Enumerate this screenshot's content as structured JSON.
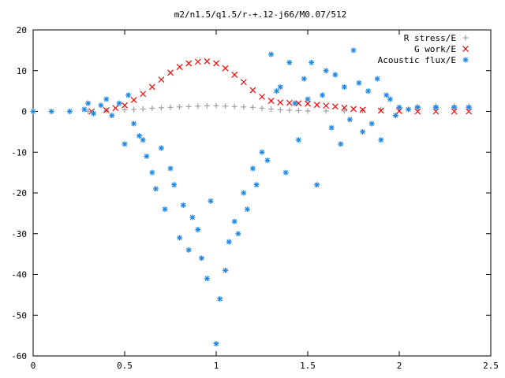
{
  "chart_data": {
    "type": "scatter",
    "title": "m2/n1.5/q1.5/r-+.12-j66/M0.07/512",
    "xlabel": "",
    "ylabel": "",
    "xlim": [
      0,
      2.5
    ],
    "ylim": [
      -60,
      20
    ],
    "x_ticks": [
      "0",
      "0.5",
      "1",
      "1.5",
      "2",
      "2.5"
    ],
    "y_ticks": [
      "20",
      "10",
      "0",
      "-10",
      "-20",
      "-30",
      "-40",
      "-50",
      "-60"
    ],
    "grid": false,
    "legend_position": "top-right",
    "series": [
      {
        "name": "R stress/E",
        "marker": "plus",
        "color": "#a0a0a0",
        "x": [
          0.3,
          0.4,
          0.5,
          0.55,
          0.6,
          0.65,
          0.7,
          0.75,
          0.8,
          0.85,
          0.9,
          0.95,
          1.0,
          1.05,
          1.1,
          1.15,
          1.2,
          1.25,
          1.3,
          1.35,
          1.4,
          1.45,
          1.5,
          1.6,
          1.7,
          1.8,
          1.9,
          2.0,
          2.1,
          2.2,
          2.3,
          2.38
        ],
        "y": [
          0.0,
          0.2,
          0.4,
          0.5,
          0.6,
          0.8,
          0.9,
          1.0,
          1.1,
          1.2,
          1.3,
          1.4,
          1.4,
          1.3,
          1.2,
          1.1,
          1.0,
          0.8,
          0.6,
          0.4,
          0.3,
          0.2,
          0.1,
          0.1,
          0.1,
          0.2,
          0.5,
          1.0,
          1.2,
          1.3,
          1.3,
          1.3
        ]
      },
      {
        "name": "G work/E",
        "marker": "cross",
        "color": "#ff0000",
        "x": [
          0.32,
          0.4,
          0.45,
          0.5,
          0.55,
          0.6,
          0.65,
          0.7,
          0.75,
          0.8,
          0.85,
          0.9,
          0.95,
          1.0,
          1.05,
          1.1,
          1.15,
          1.2,
          1.25,
          1.3,
          1.35,
          1.4,
          1.45,
          1.5,
          1.55,
          1.6,
          1.65,
          1.7,
          1.75,
          1.8,
          1.9,
          2.0,
          2.1,
          2.2,
          2.3,
          2.38
        ],
        "y": [
          0.0,
          0.3,
          0.8,
          1.5,
          2.8,
          4.3,
          6.0,
          7.8,
          9.5,
          10.9,
          11.8,
          12.2,
          12.3,
          11.8,
          10.6,
          9.0,
          7.2,
          5.2,
          3.6,
          2.6,
          2.2,
          2.1,
          2.0,
          1.9,
          1.6,
          1.4,
          1.2,
          0.9,
          0.6,
          0.4,
          0.2,
          0.1,
          0.0,
          0.0,
          0.0,
          0.0
        ]
      },
      {
        "name": "Acoustic flux/E",
        "marker": "star",
        "color": "#1e88e5",
        "x": [
          0.0,
          0.1,
          0.2,
          0.28,
          0.3,
          0.33,
          0.37,
          0.4,
          0.43,
          0.47,
          0.5,
          0.52,
          0.55,
          0.58,
          0.6,
          0.62,
          0.65,
          0.67,
          0.7,
          0.72,
          0.75,
          0.77,
          0.8,
          0.82,
          0.85,
          0.87,
          0.9,
          0.92,
          0.95,
          0.97,
          1.0,
          1.02,
          1.05,
          1.07,
          1.1,
          1.12,
          1.15,
          1.17,
          1.2,
          1.22,
          1.25,
          1.28,
          1.3,
          1.33,
          1.35,
          1.38,
          1.4,
          1.43,
          1.45,
          1.48,
          1.5,
          1.52,
          1.55,
          1.58,
          1.6,
          1.63,
          1.65,
          1.68,
          1.7,
          1.73,
          1.75,
          1.78,
          1.8,
          1.83,
          1.85,
          1.88,
          1.9,
          1.93,
          1.95,
          1.98,
          2.0,
          2.05,
          2.1,
          2.2,
          2.3,
          2.38
        ],
        "y": [
          0.0,
          0.0,
          0.0,
          0.5,
          2.0,
          -0.5,
          1.5,
          3.0,
          -1.0,
          2.0,
          -8.0,
          4.0,
          -3.0,
          -6.0,
          -7.0,
          -11.0,
          -15.0,
          -19.0,
          -9.0,
          -24.0,
          -14.0,
          -18.0,
          -31.0,
          -23.0,
          -34.0,
          -26.0,
          -29.0,
          -36.0,
          -41.0,
          -22.0,
          -57.0,
          -46.0,
          -39.0,
          -32.0,
          -27.0,
          -30.0,
          -20.0,
          -24.0,
          -14.0,
          -18.0,
          -10.0,
          -12.0,
          14.0,
          5.0,
          6.0,
          -15.0,
          12.0,
          2.0,
          -7.0,
          8.0,
          3.0,
          12.0,
          -18.0,
          4.0,
          10.0,
          -4.0,
          9.0,
          -8.0,
          6.0,
          -2.0,
          15.0,
          7.0,
          -5.0,
          5.0,
          -3.0,
          8.0,
          -7.0,
          4.0,
          3.0,
          -1.0,
          1.0,
          0.5,
          1.0,
          1.0,
          1.0,
          1.0
        ]
      }
    ]
  }
}
